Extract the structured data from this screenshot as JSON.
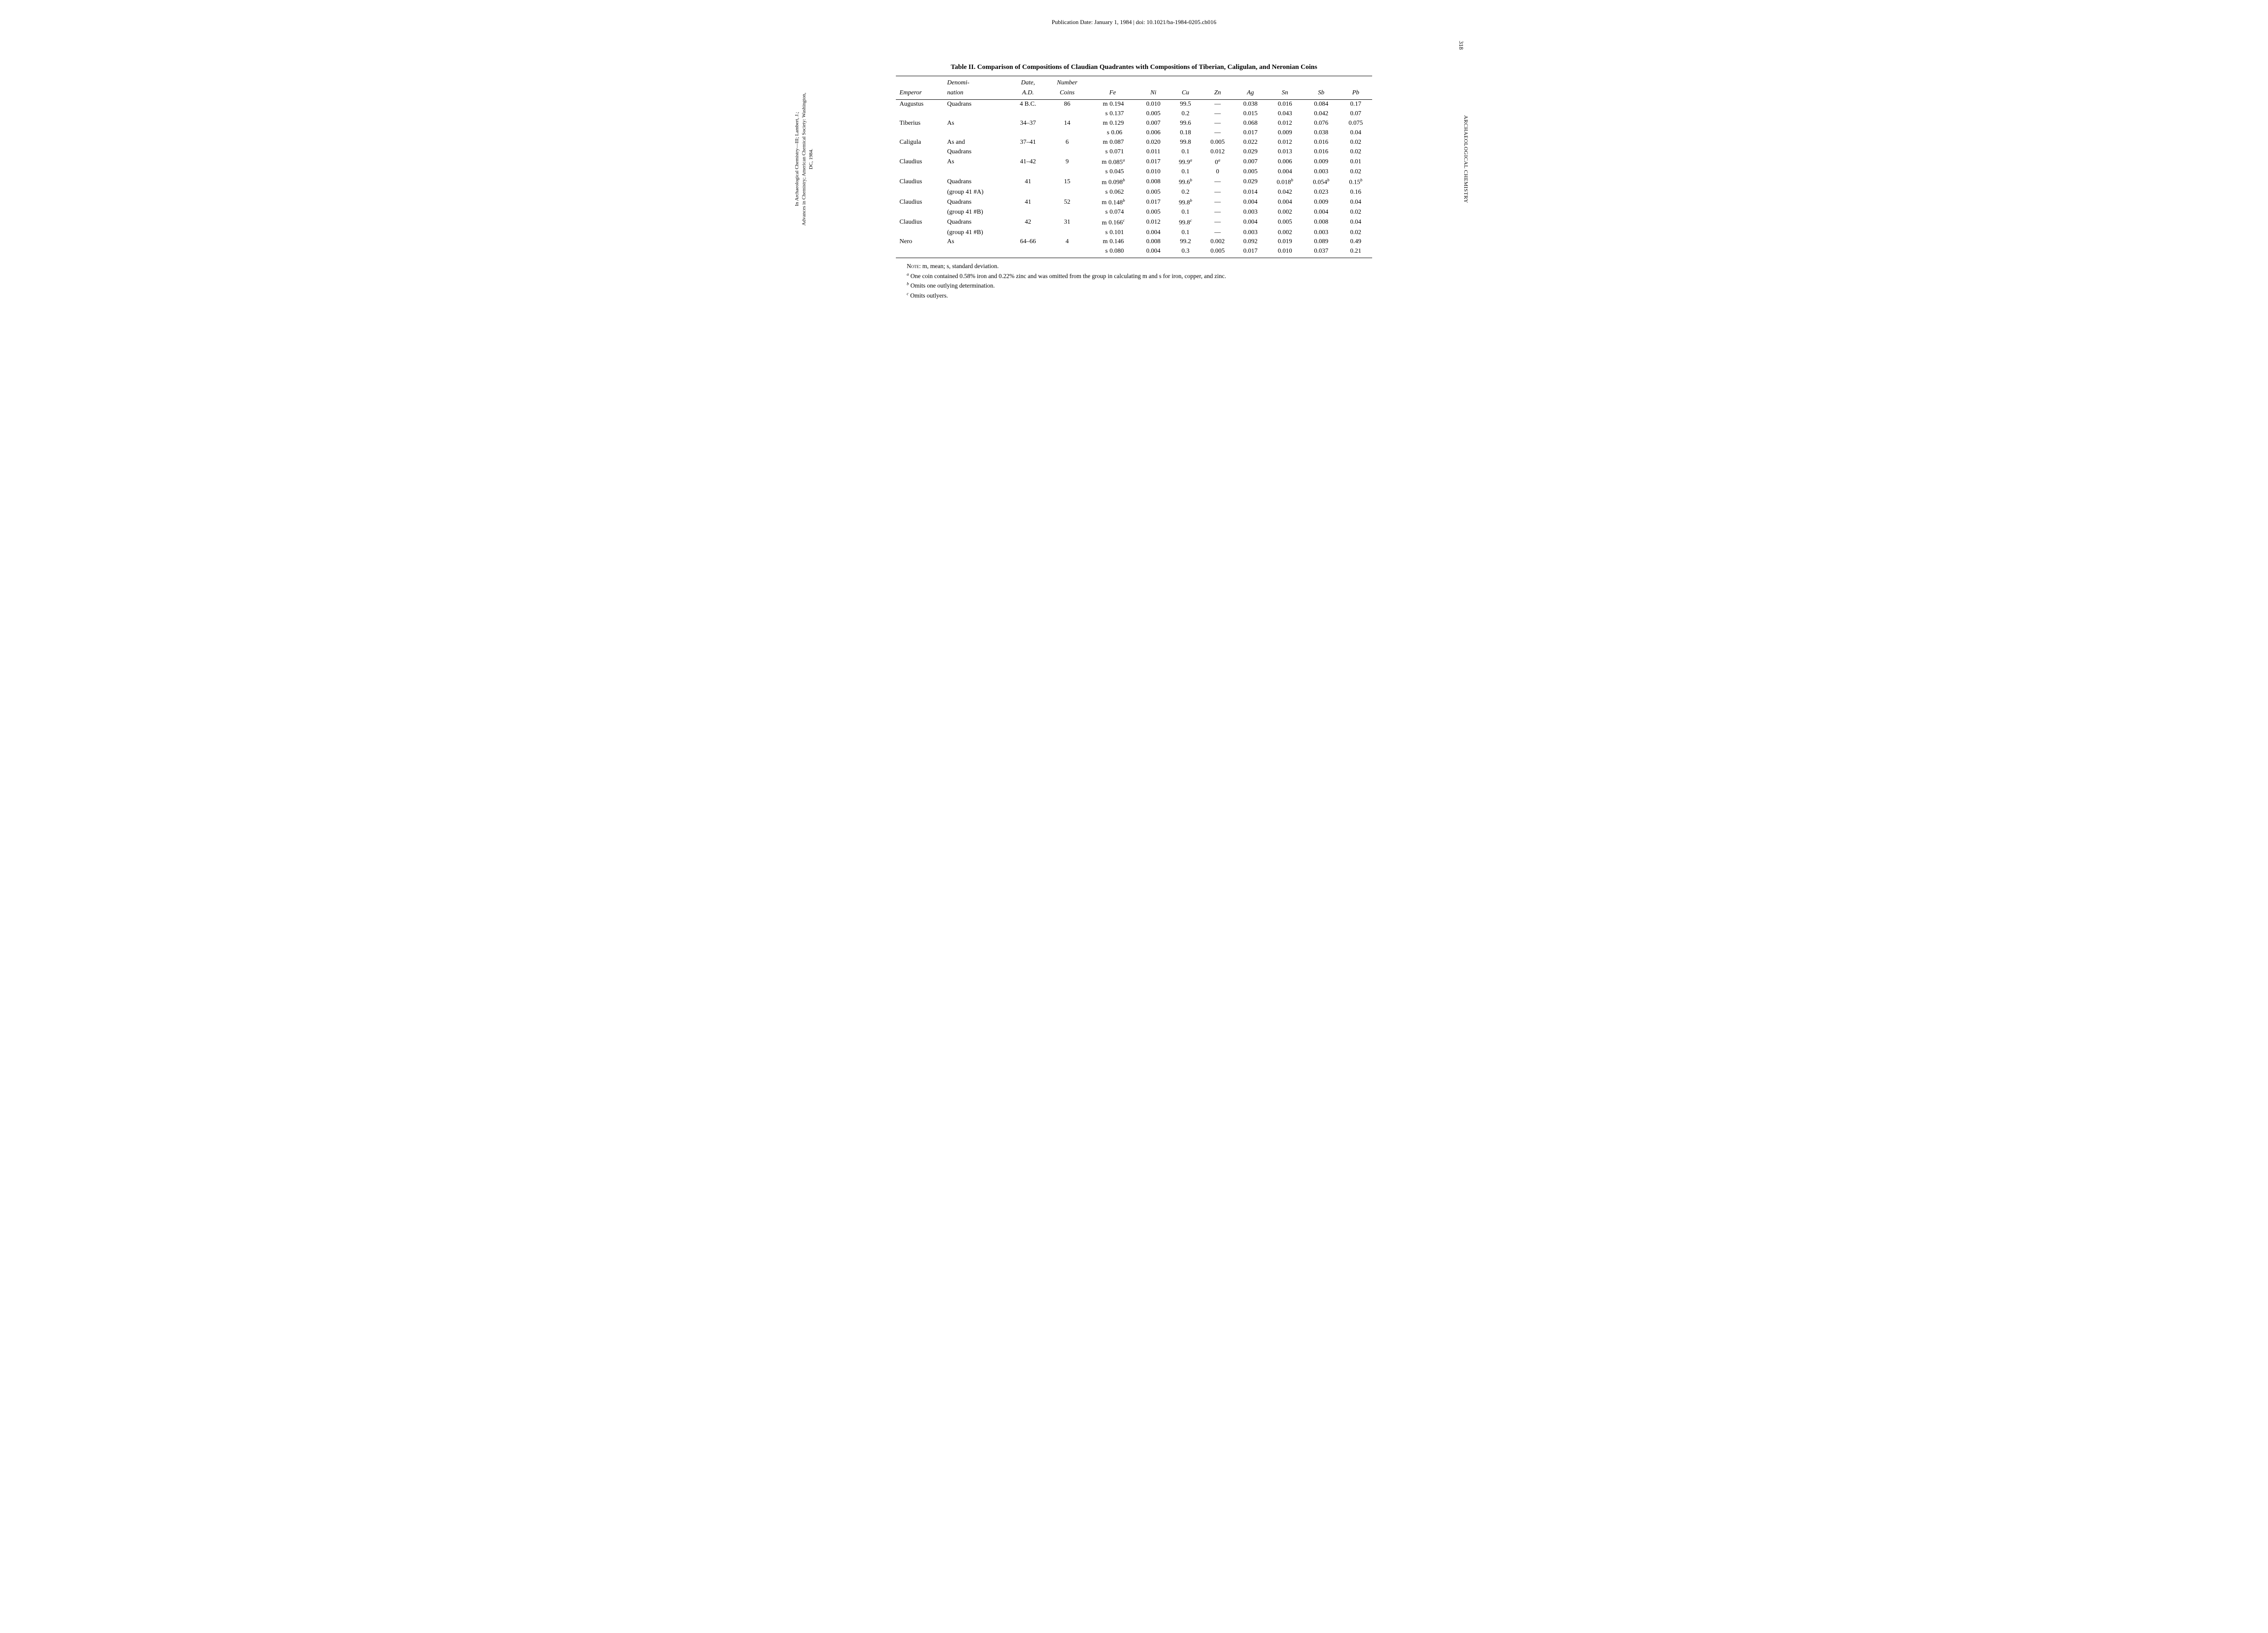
{
  "header": "Publication Date: January 1, 1984 | doi: 10.1021/ba-1984-0205.ch016",
  "page_number": "318",
  "vertical_right": "ARCHAEOLOGICAL CHEMISTRY",
  "vertical_left_line1": "In Archaeological Chemistry—III; Lambert, J.;",
  "vertical_left_line2": "Advances in Chemistry; American Chemical Society: Washington, DC, 1984.",
  "table": {
    "title": "Table II.  Comparison of Compositions of Claudian Quadrantes with Compositions of Tiberian, Caligulan, and Neronian Coins",
    "head_row1": [
      "",
      "Denomi-",
      "Date,",
      "Number",
      "",
      "",
      "",
      "",
      "",
      "",
      "",
      ""
    ],
    "head_row2": [
      "Emperor",
      "nation",
      "A.D.",
      "Coins",
      "Fe",
      "Ni",
      "Cu",
      "Zn",
      "Ag",
      "Sn",
      "Sb",
      "Pb"
    ],
    "rows": [
      {
        "emperor": "Augustus",
        "denom": "Quadrans",
        "date": "4 B.C.",
        "n": "86",
        "m": {
          "Fe": "0.194",
          "Ni": "0.010",
          "Cu": "99.5",
          "Zn": "—",
          "Ag": "0.038",
          "Sn": "0.016",
          "Sb": "0.084",
          "Pb": "0.17"
        },
        "s": {
          "Fe": "0.137",
          "Ni": "0.005",
          "Cu": "0.2",
          "Zn": "—",
          "Ag": "0.015",
          "Sn": "0.043",
          "Sb": "0.042",
          "Pb": "0.07"
        }
      },
      {
        "emperor": "Tiberius",
        "denom": "As",
        "date": "34–37",
        "n": "14",
        "m": {
          "Fe": "0.129",
          "Ni": "0.007",
          "Cu": "99.6",
          "Zn": "—",
          "Ag": "0.068",
          "Sn": "0.012",
          "Sb": "0.076",
          "Pb": "0.075"
        },
        "s": {
          "Fe": "0.06",
          "Ni": "0.006",
          "Cu": "0.18",
          "Zn": "—",
          "Ag": "0.017",
          "Sn": "0.009",
          "Sb": "0.038",
          "Pb": "0.04"
        }
      },
      {
        "emperor": "Caligula",
        "denom": "As and",
        "denom2": "Quadrans",
        "date": "37–41",
        "n": "6",
        "m": {
          "Fe": "0.087",
          "Ni": "0.020",
          "Cu": "99.8",
          "Zn": "0.005",
          "Ag": "0.022",
          "Sn": "0.012",
          "Sb": "0.016",
          "Pb": "0.02"
        },
        "s": {
          "Fe": "0.071",
          "Ni": "0.011",
          "Cu": "0.1",
          "Zn": "0.012",
          "Ag": "0.029",
          "Sn": "0.013",
          "Sb": "0.016",
          "Pb": "0.02"
        }
      },
      {
        "emperor": "Claudius",
        "denom": "As",
        "date": "41–42",
        "n": "9",
        "m": {
          "Fe": "0.085",
          "Fe_sup": "a",
          "Ni": "0.017",
          "Cu": "99.9",
          "Cu_sup": "a",
          "Zn": "0",
          "Zn_sup": "a",
          "Ag": "0.007",
          "Sn": "0.006",
          "Sb": "0.009",
          "Pb": "0.01"
        },
        "s": {
          "Fe": "0.045",
          "Ni": "0.010",
          "Cu": "0.1",
          "Zn": "0",
          "Ag": "0.005",
          "Sn": "0.004",
          "Sb": "0.003",
          "Pb": "0.02"
        }
      },
      {
        "emperor": "Claudius",
        "denom": "Quadrans",
        "denom2": "(group 41 #A)",
        "date": "41",
        "n": "15",
        "m": {
          "Fe": "0.098",
          "Fe_sup": "b",
          "Ni": "0.008",
          "Cu": "99.6",
          "Cu_sup": "b",
          "Zn": "—",
          "Ag": "0.029",
          "Sn": "0.018",
          "Sn_sup": "b",
          "Sb": "0.054",
          "Sb_sup": "b",
          "Pb": "0.15",
          "Pb_sup": "b"
        },
        "s": {
          "Fe": "0.062",
          "Ni": "0.005",
          "Cu": "0.2",
          "Zn": "—",
          "Ag": "0.014",
          "Sn": "0.042",
          "Sb": "0.023",
          "Pb": "0.16"
        }
      },
      {
        "emperor": "Claudius",
        "denom": "Quadrans",
        "denom2": "(group 41 #B)",
        "date": "41",
        "n": "52",
        "m": {
          "Fe": "0.148",
          "Fe_sup": "b",
          "Ni": "0.017",
          "Cu": "99.8",
          "Cu_sup": "b",
          "Zn": "—",
          "Ag": "0.004",
          "Sn": "0.004",
          "Sb": "0.009",
          "Pb": "0.04"
        },
        "s": {
          "Fe": "0.074",
          "Ni": "0.005",
          "Cu": "0.1",
          "Zn": "—",
          "Ag": "0.003",
          "Sn": "0.002",
          "Sb": "0.004",
          "Pb": "0.02"
        }
      },
      {
        "emperor": "Claudius",
        "denom": "Quadrans",
        "denom2": "(group 41 #B)",
        "date": "42",
        "n": "31",
        "m": {
          "Fe": "0.166",
          "Fe_sup": "c",
          "Ni": "0.012",
          "Cu": "99.8",
          "Cu_sup": "c",
          "Zn": "—",
          "Ag": "0.004",
          "Sn": "0.005",
          "Sb": "0.008",
          "Pb": "0.04"
        },
        "s": {
          "Fe": "0.101",
          "Ni": "0.004",
          "Cu": "0.1",
          "Zn": "—",
          "Ag": "0.003",
          "Sn": "0.002",
          "Sb": "0.003",
          "Pb": "0.02"
        }
      },
      {
        "emperor": "Nero",
        "denom": "As",
        "date": "64–66",
        "n": "4",
        "m": {
          "Fe": "0.146",
          "Ni": "0.008",
          "Cu": "99.2",
          "Zn": "0.002",
          "Ag": "0.092",
          "Sn": "0.019",
          "Sb": "0.089",
          "Pb": "0.49"
        },
        "s": {
          "Fe": "0.080",
          "Ni": "0.004",
          "Cu": "0.3",
          "Zn": "0.005",
          "Ag": "0.017",
          "Sn": "0.010",
          "Sb": "0.037",
          "Pb": "0.21"
        }
      }
    ]
  },
  "footnotes": {
    "note_label": "Note",
    "note_text": ": m, mean; s, standard deviation.",
    "a": " One coin contained 0.58% iron and 0.22% zinc and was omitted from the group in calculating m and s for iron, copper, and zinc.",
    "b": " Omits one outlying determination.",
    "c": " Omits outlyers."
  }
}
